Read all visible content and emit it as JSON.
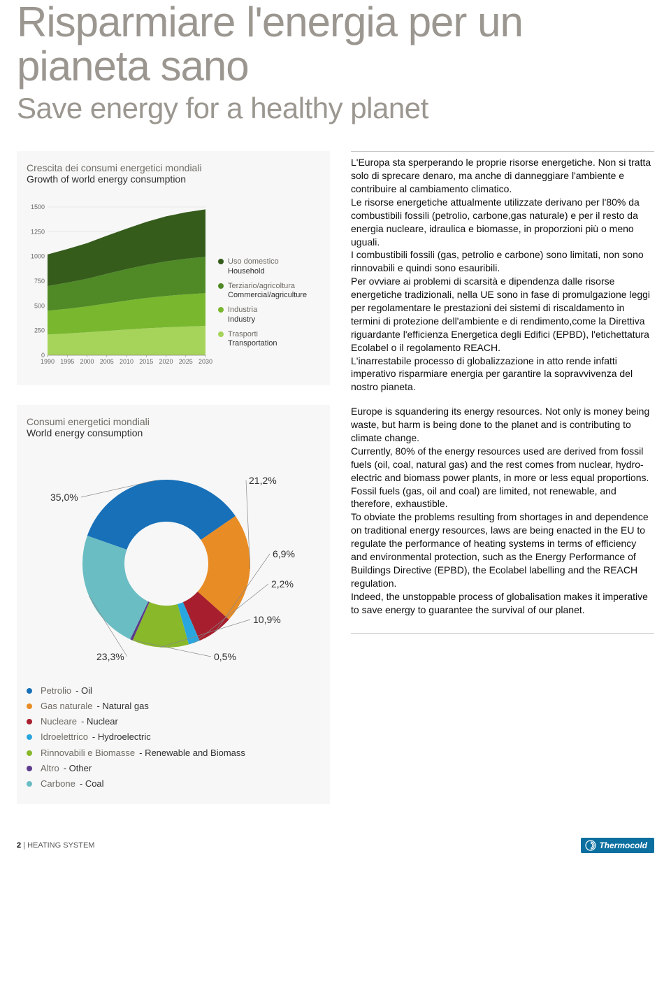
{
  "title_it": "Risparmiare l'energia per un pianeta sano",
  "title_en": "Save energy for a healthy planet",
  "area_chart": {
    "title_it": "Crescita dei consumi energetici mondiali",
    "title_en": "Growth of world energy consumption",
    "background": "#f7f7f7",
    "x_years": [
      1990,
      1995,
      2000,
      2005,
      2010,
      2015,
      2020,
      2025,
      2030
    ],
    "y_ticks": [
      0,
      250,
      500,
      750,
      1000,
      1250,
      1500
    ],
    "ylim": [
      0,
      1500
    ],
    "grid_color": "#dddddd",
    "series": [
      {
        "key": "household",
        "it": "Uso domestico",
        "en": "Household",
        "color": "#355c1b",
        "values": [
          320,
          340,
          360,
          385,
          410,
          435,
          455,
          470,
          480
        ]
      },
      {
        "key": "commercial",
        "it": "Terziario/agricoltura",
        "en": "Commercial/agriculture",
        "color": "#4f8a26",
        "values": [
          250,
          265,
          280,
          300,
          318,
          335,
          350,
          360,
          368
        ]
      },
      {
        "key": "industry",
        "it": "Industria",
        "en": "Industry",
        "color": "#79b72f",
        "values": [
          240,
          250,
          262,
          278,
          293,
          307,
          318,
          326,
          332
        ]
      },
      {
        "key": "transport",
        "it": "Trasporti",
        "en": "Transportation",
        "color": "#a6d45a",
        "values": [
          210,
          220,
          232,
          246,
          260,
          272,
          282,
          290,
          296
        ]
      }
    ]
  },
  "donut": {
    "title_it": "Consumi energetici mondiali",
    "title_en": "World energy consumption",
    "inner_radius": 60,
    "outer_radius": 120,
    "slices": [
      {
        "key": "oil",
        "it": "Petrolio",
        "en": "Oil",
        "color": "#1770b8",
        "pct": 35.0,
        "label": "35,0%"
      },
      {
        "key": "natural_gas",
        "it": "Gas naturale",
        "en": "Natural gas",
        "color": "#e88c25",
        "pct": 21.2,
        "label": "21,2%"
      },
      {
        "key": "nuclear",
        "it": "Nucleare",
        "en": "Nuclear",
        "color": "#a71f2e",
        "pct": 6.9,
        "label": "6,9%"
      },
      {
        "key": "hydro",
        "it": "Idroelettrico",
        "en": "Hydroelectric",
        "color": "#2aa6de",
        "pct": 2.2,
        "label": "2,2%"
      },
      {
        "key": "renewable",
        "it": "Rinnovabili e Biomasse",
        "en": "Renewable and Biomass",
        "color": "#89b82b",
        "pct": 10.9,
        "label": "10,9%"
      },
      {
        "key": "other",
        "it": "Altro",
        "en": "Other",
        "color": "#5c3a8c",
        "pct": 0.5,
        "label": "0,5%"
      },
      {
        "key": "coal",
        "it": "Carbone",
        "en": "Coal",
        "color": "#6abdc3",
        "pct": 23.3,
        "label": "23,3%"
      }
    ]
  },
  "body": {
    "it": [
      "L'Europa sta sperperando le proprie risorse energetiche. Non si tratta solo di sprecare denaro, ma anche di danneggiare l'ambiente e contribuire al cambiamento climatico.",
      "Le risorse energetiche attualmente utilizzate derivano per l'80% da combustibili fossili (petrolio, carbone,gas naturale) e per il resto da energia nucleare, idraulica e biomasse, in proporzioni più o meno uguali.",
      "I combustibili fossili (gas, petrolio e carbone) sono limitati, non sono rinnovabili e quindi sono esauribili.",
      "Per ovviare ai problemi di scarsità e dipendenza dalle risorse energetiche tradizionali, nella UE sono in fase di promulgazione leggi per regolamentare le prestazioni dei sistemi di riscaldamento in termini di protezione dell'ambiente e di rendimento,come la Direttiva riguardante l'efficienza Energetica degli Edifici (EPBD), l'etichettatura Ecolabel o il regolamento REACH.",
      "L'inarrestabile processo di globalizzazione in atto rende infatti imperativo risparmiare energia per garantire la sopravvivenza del nostro pianeta."
    ],
    "en": [
      "Europe is squandering its energy resources. Not only is money being waste, but harm is being done to the planet and is contributing to climate change.",
      "Currently, 80% of the energy resources used are derived from fossil fuels (oil, coal, natural gas) and the rest comes from nuclear, hydro-electric and biomass power plants, in more or less equal proportions.",
      "Fossil fuels (gas, oil and coal) are limited, not renewable, and therefore, exhaustible.",
      "To obviate the problems resulting from shortages in and dependence on traditional energy resources, laws are being enacted in the EU to regulate the performance of heating systems in terms of efficiency and environmental protection, such as the Energy Performance of Buildings Directive (EPBD), the Ecolabel labelling and the REACH regulation.",
      "Indeed, the unstoppable process of globalisation makes it imperative to save energy to guarantee the survival of our planet."
    ]
  },
  "footer": {
    "page_num": "2",
    "section": "HEATING SYSTEM",
    "logo_text": "Thermocold"
  }
}
